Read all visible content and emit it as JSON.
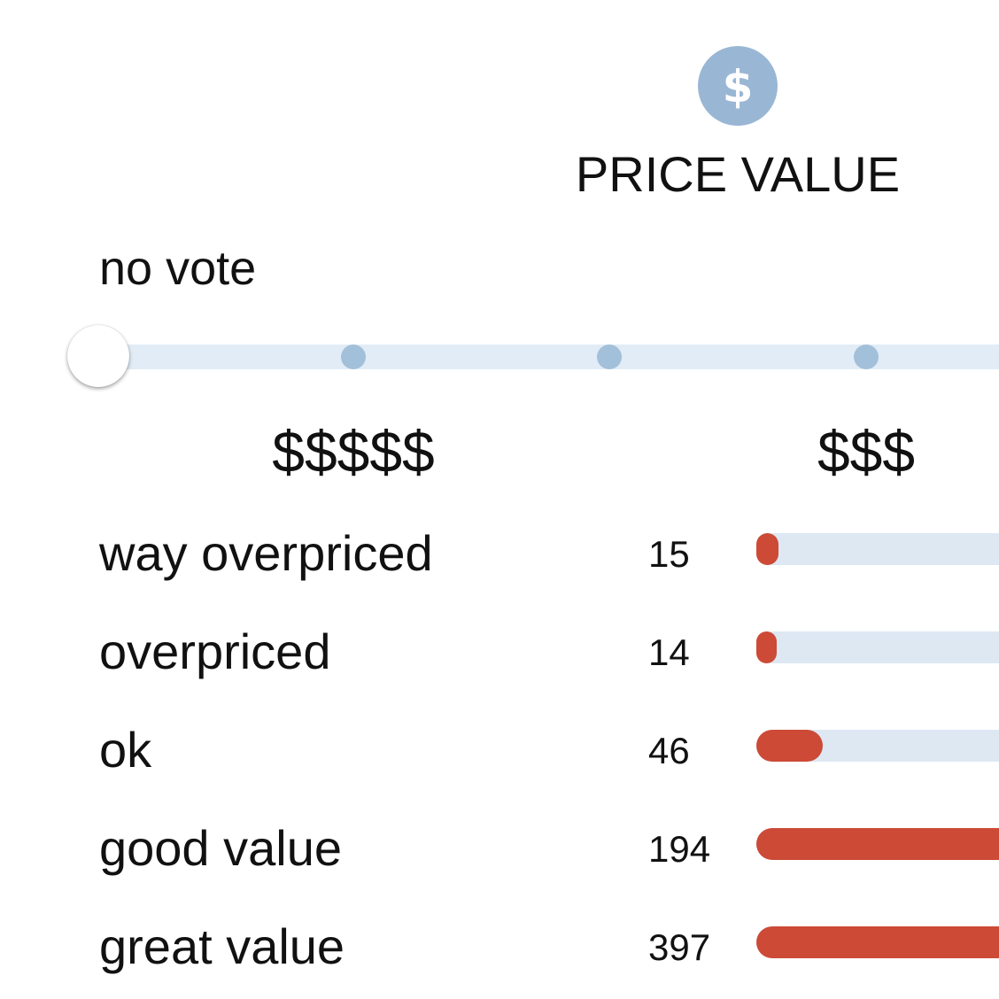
{
  "header": {
    "icon": "dollar-icon",
    "title": "PRICE VALUE"
  },
  "vote": {
    "status": "no vote"
  },
  "slider": {
    "steps": 5,
    "selected_index": 0,
    "scale_labels": [
      {
        "step": 1,
        "label": "$$$$$"
      },
      {
        "step": 3,
        "label": "$$$"
      }
    ]
  },
  "ratings": {
    "scale_max": 397,
    "items": [
      {
        "label": "way overpriced",
        "count": "15",
        "value": 15
      },
      {
        "label": "overpriced",
        "count": "14",
        "value": 14
      },
      {
        "label": "ok",
        "count": "46",
        "value": 46
      },
      {
        "label": "good value",
        "count": "194",
        "value": 194
      },
      {
        "label": "great value",
        "count": "397",
        "value": 397
      }
    ]
  },
  "colors": {
    "accent": "#cc4a36",
    "track": "#dde8f3",
    "icon_bg": "#99b7d4"
  }
}
